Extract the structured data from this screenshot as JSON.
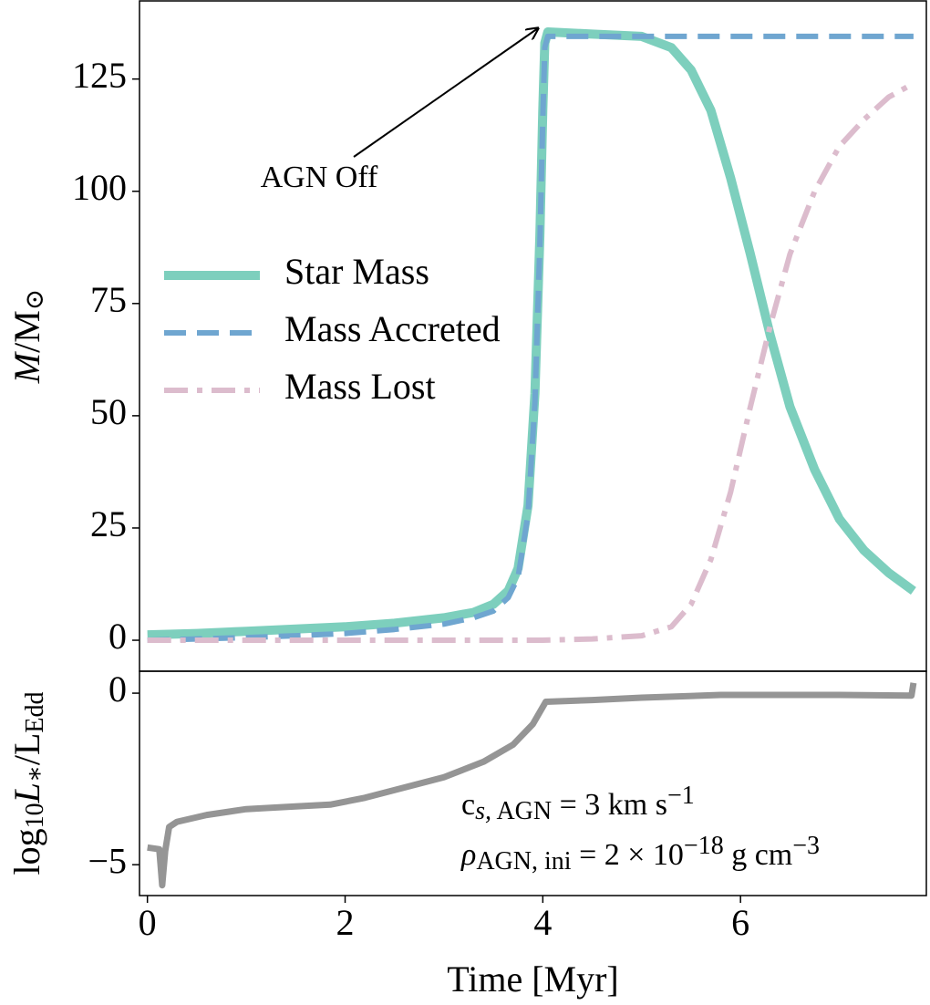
{
  "chart_data": [
    {
      "type": "line",
      "ylabel": [
        {
          "text": "M",
          "italic": true
        },
        {
          "text": "/M"
        },
        {
          "text": "⊙",
          "shift": "sub"
        }
      ],
      "xlim": [
        -0.08,
        7.88
      ],
      "ylim": [
        -6.9,
        142.4
      ],
      "yticks": [
        0,
        25,
        50,
        75,
        100,
        125
      ],
      "legend": "center left",
      "annotation": "AGN Off",
      "series": [
        {
          "name": "Star Mass",
          "color": "#7dcfbd",
          "linestyle": "solid",
          "x": [
            0,
            0.5,
            1,
            1.5,
            2,
            2.5,
            3,
            3.3,
            3.5,
            3.65,
            3.75,
            3.85,
            3.92,
            3.97,
            4.0,
            4.02,
            4.05,
            4.5,
            5,
            5.3,
            5.5,
            5.7,
            5.9,
            6.1,
            6.3,
            6.5,
            6.75,
            7,
            7.25,
            7.5,
            7.75
          ],
          "values": [
            1.2,
            1.5,
            2,
            2.5,
            3,
            3.8,
            5,
            6.2,
            8,
            11,
            16,
            30,
            55,
            90,
            118,
            133,
            135.5,
            135,
            134.5,
            132,
            127,
            118,
            103,
            86,
            68,
            52,
            38,
            27,
            20,
            15,
            11
          ]
        },
        {
          "name": "Mass Accreted",
          "color": "#6fa6d0",
          "linestyle": "dashed",
          "x": [
            0,
            0.5,
            1,
            1.5,
            2,
            2.5,
            3,
            3.3,
            3.5,
            3.65,
            3.75,
            3.85,
            3.92,
            3.97,
            4.0,
            4.02,
            4.05,
            7.75
          ],
          "values": [
            0,
            0.3,
            0.6,
            1,
            1.5,
            2.4,
            3.6,
            5,
            6.5,
            9.5,
            14,
            28,
            53,
            88,
            116,
            132,
            134.5,
            134.5
          ]
        },
        {
          "name": "Mass Lost",
          "color": "#dcbccd",
          "linestyle": "dashdot",
          "x": [
            0,
            3,
            4,
            4.5,
            5,
            5.3,
            5.5,
            5.7,
            5.9,
            6.1,
            6.3,
            6.5,
            6.75,
            7,
            7.25,
            7.5,
            7.75
          ],
          "values": [
            0,
            0,
            0,
            0.3,
            1,
            3,
            8,
            18,
            33,
            52,
            70,
            86,
            100,
            110,
            116,
            121,
            124
          ]
        }
      ]
    },
    {
      "type": "line",
      "xlabel": "Time [Myr]",
      "ylabel": [
        {
          "text": "log"
        },
        {
          "text": "10",
          "shift": "sub"
        },
        {
          "text": "L",
          "italic": true
        },
        {
          "text": "∗",
          "shift": "sub"
        },
        {
          "text": "/L"
        },
        {
          "text": "Edd",
          "shift": "sub"
        }
      ],
      "xlim": [
        -0.08,
        7.88
      ],
      "ylim": [
        -5.9,
        0.64
      ],
      "xticks": [
        0,
        2,
        4,
        6
      ],
      "yticks": [
        {
          "value": -5,
          "label": "−5"
        },
        0
      ],
      "text_box": [
        [
          {
            "text": "c"
          },
          {
            "text": "s,",
            "shift": "sub",
            "italic": true
          },
          {
            "text": " AGN",
            "shift": "sub"
          },
          {
            "text": " = 3 km s"
          },
          {
            "text": "−1",
            "shift": "sup"
          }
        ],
        [
          {
            "text": "ρ",
            "italic": true
          },
          {
            "text": "AGN, ini",
            "shift": "sub"
          },
          {
            "text": " = 2 × 10"
          },
          {
            "text": "−18",
            "shift": "sup"
          },
          {
            "text": " g cm"
          },
          {
            "text": "−3",
            "shift": "sup"
          }
        ]
      ],
      "series": [
        {
          "color": "#959595",
          "linestyle": "solid",
          "x": [
            0,
            0.12,
            0.15,
            0.18,
            0.22,
            0.3,
            0.6,
            1,
            1.5,
            1.85,
            2.2,
            2.6,
            3,
            3.4,
            3.7,
            3.9,
            4.03,
            4.5,
            5,
            5.8,
            7,
            7.73,
            7.75
          ],
          "values": [
            -4.5,
            -4.55,
            -5.6,
            -4.6,
            -3.9,
            -3.75,
            -3.55,
            -3.38,
            -3.3,
            -3.25,
            -3.05,
            -2.75,
            -2.45,
            -2.0,
            -1.5,
            -0.9,
            -0.25,
            -0.2,
            -0.13,
            -0.05,
            -0.05,
            -0.07,
            0.3
          ]
        }
      ]
    }
  ]
}
